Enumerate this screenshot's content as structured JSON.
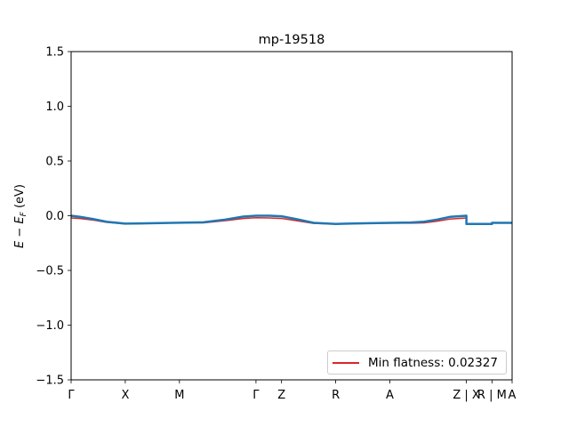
{
  "chart_data": {
    "type": "line",
    "title": "mp-19518",
    "xlabel": "",
    "ylabel": "E − E_F (eV)",
    "ylim": [
      -1.5,
      1.5
    ],
    "grid": false,
    "legend_placement": "lower right",
    "y_ticks": [
      -1.5,
      -1.0,
      -0.5,
      0.0,
      0.5,
      1.0,
      1.5
    ],
    "y_tick_labels": [
      "−1.5",
      "−1.0",
      "−0.5",
      "0.0",
      "0.5",
      "1.0",
      "1.5"
    ],
    "x_ticks": [
      {
        "label": "Γ",
        "pos": 0.0
      },
      {
        "label": "X",
        "pos": 0.1228
      },
      {
        "label": "M",
        "pos": 0.2456
      },
      {
        "label": "Γ",
        "pos": 0.4192
      },
      {
        "label": "Z",
        "pos": 0.4772
      },
      {
        "label": "R",
        "pos": 0.6
      },
      {
        "label": "A",
        "pos": 0.7228
      },
      {
        "label": "Z | X",
        "pos": 0.8964
      },
      {
        "label": "R | M",
        "pos": 0.9544
      },
      {
        "label": "A",
        "pos": 1.0
      }
    ],
    "series": [
      {
        "name": "Min flatness: 0.02327",
        "color": "#d62728",
        "x": [
          0.0,
          0.02,
          0.05,
          0.08,
          0.1228,
          0.16,
          0.2456,
          0.3,
          0.35,
          0.39,
          0.4192,
          0.45,
          0.4772,
          0.51,
          0.55,
          0.6,
          0.65,
          0.7228,
          0.77,
          0.8,
          0.83,
          0.86,
          0.8964,
          0.8964,
          0.9544,
          0.9544,
          1.0
        ],
        "y": [
          -0.02,
          -0.025,
          -0.04,
          -0.06,
          -0.075,
          -0.072,
          -0.065,
          -0.065,
          -0.045,
          -0.025,
          -0.018,
          -0.02,
          -0.025,
          -0.045,
          -0.07,
          -0.075,
          -0.072,
          -0.068,
          -0.068,
          -0.065,
          -0.05,
          -0.03,
          -0.02,
          -0.075,
          -0.075,
          -0.065,
          -0.065
        ]
      },
      {
        "name": "",
        "color": "#1f77b4",
        "x": [
          0.0,
          0.02,
          0.05,
          0.08,
          0.1228,
          0.16,
          0.2456,
          0.3,
          0.35,
          0.39,
          0.4192,
          0.45,
          0.4772,
          0.51,
          0.55,
          0.6,
          0.65,
          0.7228,
          0.77,
          0.8,
          0.83,
          0.86,
          0.8964,
          0.8964,
          0.9544,
          0.9544,
          1.0
        ],
        "y": [
          0.0,
          -0.01,
          -0.03,
          -0.055,
          -0.072,
          -0.07,
          -0.064,
          -0.06,
          -0.035,
          -0.008,
          0.0,
          0.0,
          -0.005,
          -0.03,
          -0.065,
          -0.075,
          -0.07,
          -0.065,
          -0.062,
          -0.055,
          -0.035,
          -0.01,
          0.0,
          -0.075,
          -0.075,
          -0.065,
          -0.065
        ]
      }
    ]
  }
}
